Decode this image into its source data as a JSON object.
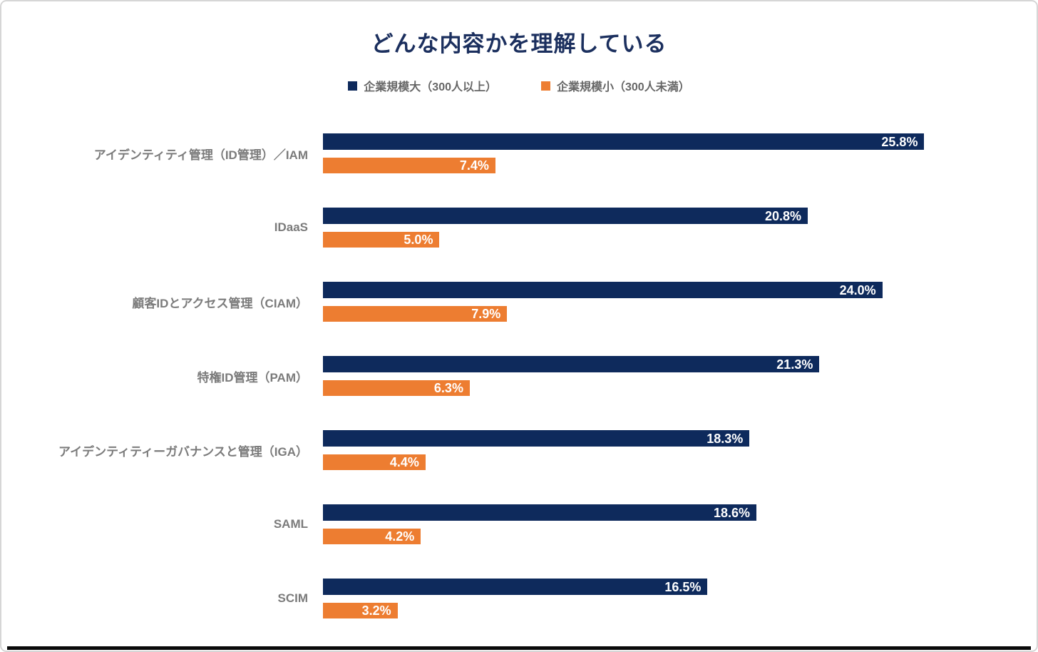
{
  "colors": {
    "series_large": "#0e2a5c",
    "series_small": "#ed7d31",
    "title_text": "#1b2f5e",
    "legend_text": "#666666",
    "category_text": "#7b7b7b",
    "value_text": "#ffffff",
    "frame_border": "#d6d6d6",
    "bottom_line": "#0a0a0a"
  },
  "chart_data": {
    "type": "bar",
    "orientation": "horizontal",
    "title": "どんな内容かを理解している",
    "legend_position": "top-center",
    "grid": false,
    "axis_max": 26,
    "value_suffix": "%",
    "categories": [
      "アイデンティティ管理（ID管理）／IAM",
      "IDaaS",
      "顧客IDとアクセス管理（CIAM）",
      "特権ID管理（PAM）",
      "アイデンティティーガバナンスと管理（IGA）",
      "SAML",
      "SCIM"
    ],
    "series": [
      {
        "name": "企業規模大（300人以上）",
        "color": "#0e2a5c",
        "values": [
          25.8,
          20.8,
          24.0,
          21.3,
          18.3,
          18.6,
          16.5
        ],
        "labels": [
          "25.8%",
          "20.8%",
          "24.0%",
          "21.3%",
          "18.3%",
          "18.6%",
          "16.5%"
        ]
      },
      {
        "name": "企業規模小（300人未満）",
        "color": "#ed7d31",
        "values": [
          7.4,
          5.0,
          7.9,
          6.3,
          4.4,
          4.2,
          3.2
        ],
        "labels": [
          "7.4%",
          "5.0%",
          "7.9%",
          "6.3%",
          "4.4%",
          "4.2%",
          "3.2%"
        ]
      }
    ]
  }
}
